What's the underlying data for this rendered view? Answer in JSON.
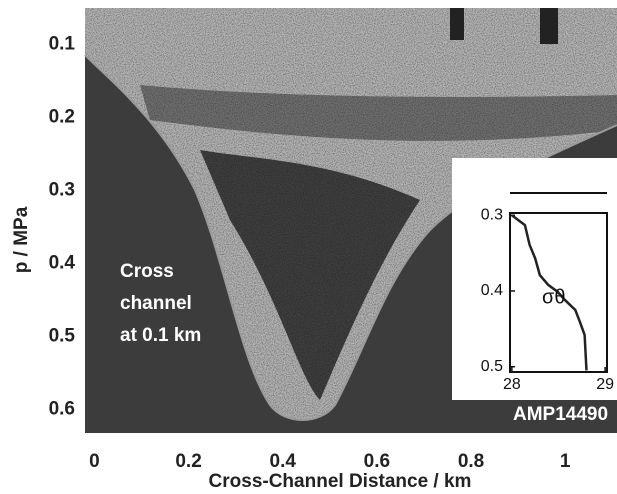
{
  "chart_data": [
    {
      "type": "image",
      "xlabel": "Cross-Channel Distance / km",
      "ylabel": "p / MPa",
      "annotation": [
        "Cross",
        "channel",
        "at  0.1 km"
      ],
      "xlim": [
        -0.02,
        1.11
      ],
      "xticks": [
        0,
        0.2,
        0.4,
        0.6,
        0.8,
        1
      ],
      "ylim": [
        0.05,
        0.632
      ],
      "yticks": [
        0.1,
        0.2,
        0.3,
        0.4,
        0.5,
        0.6
      ],
      "y_inverted": true
    },
    {
      "type": "line",
      "label": "AMP14490",
      "xlim": [
        27.98,
        29.02
      ],
      "xticks": [
        28,
        29
      ],
      "ylim": [
        0.297,
        0.507
      ],
      "yticks": [
        0.3,
        0.4,
        0.5
      ],
      "y_inverted": true,
      "series": [
        {
          "name": "σθ",
          "color": "#222222",
          "x": [
            28.0,
            28.14,
            28.19,
            28.25,
            28.3,
            28.39,
            28.49,
            28.57,
            28.68,
            28.73,
            28.78,
            28.8
          ],
          "values": [
            0.3,
            0.313,
            0.339,
            0.357,
            0.379,
            0.392,
            0.401,
            0.412,
            0.425,
            0.441,
            0.458,
            0.505
          ]
        }
      ]
    }
  ]
}
